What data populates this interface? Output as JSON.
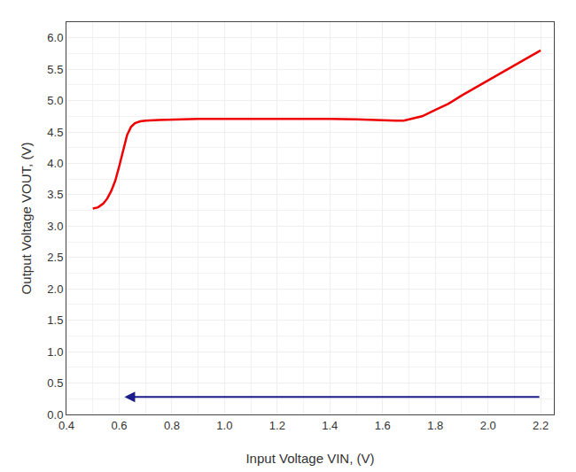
{
  "chart_data": {
    "type": "line",
    "xlabel": "Input Voltage VIN, (V)",
    "ylabel": "Output Voltage VOUT, (V)",
    "series": [
      {
        "color": "#ee0000",
        "x": [
          0.5,
          0.52,
          0.54,
          0.555,
          0.57,
          0.585,
          0.6,
          0.615,
          0.63,
          0.645,
          0.66,
          0.68,
          0.7,
          0.75,
          0.8,
          0.9,
          1.0,
          1.1,
          1.2,
          1.3,
          1.4,
          1.5,
          1.55,
          1.58,
          1.6,
          1.63,
          1.65,
          1.68,
          1.7,
          1.75,
          1.8,
          1.85,
          1.9,
          1.95,
          2.0,
          2.05,
          2.1,
          2.15,
          2.2
        ],
        "values": [
          3.28,
          3.3,
          3.36,
          3.44,
          3.56,
          3.72,
          3.95,
          4.22,
          4.45,
          4.58,
          4.64,
          4.67,
          4.68,
          4.69,
          4.7,
          4.71,
          4.71,
          4.71,
          4.72,
          4.71,
          4.71,
          4.7,
          4.69,
          4.69,
          4.68,
          4.68,
          4.68,
          4.68,
          4.7,
          4.75,
          4.85,
          4.95,
          5.08,
          5.2,
          5.33,
          5.45,
          5.57,
          5.68,
          5.8
        ]
      },
      {
        "type": "arrow",
        "color": "#1c1c8a",
        "x": [
          2.2,
          0.62
        ],
        "values": [
          0.28,
          0.28
        ]
      }
    ],
    "xlim": [
      0.4,
      2.25
    ],
    "ylim": [
      0.0,
      6.25
    ],
    "xticks": [
      0.4,
      0.6,
      0.8,
      {
        "value": 1.0,
        "label": "1.0"
      },
      1.2,
      1.4,
      1.6,
      1.8,
      {
        "value": 2.0,
        "label": "2.0"
      },
      2.2
    ],
    "yticks": [
      {
        "value": 0.0,
        "label": "0.0"
      },
      0.5,
      {
        "value": 1.0,
        "label": "1.0"
      },
      1.5,
      {
        "value": 2.0,
        "label": "2.0"
      },
      2.5,
      {
        "value": 3.0,
        "label": "3.0"
      },
      3.5,
      {
        "value": 4.0,
        "label": "4.0"
      },
      4.5,
      {
        "value": 5.0,
        "label": "5.0"
      },
      5.5,
      {
        "value": 6.0,
        "label": "6.0"
      }
    ],
    "grid": true
  }
}
